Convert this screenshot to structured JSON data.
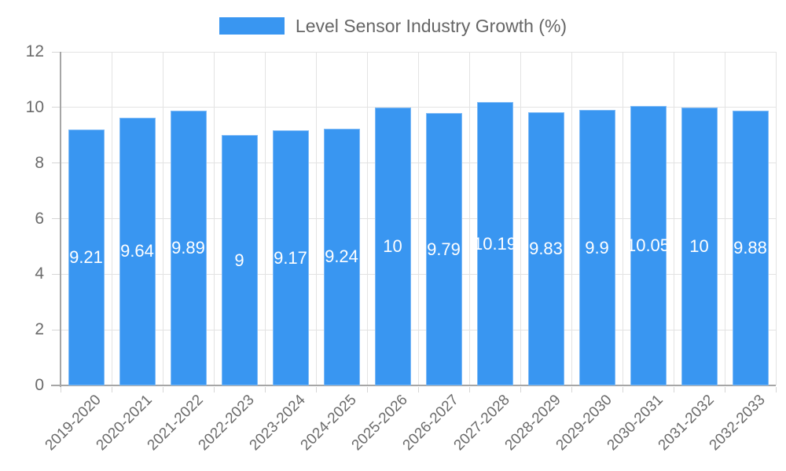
{
  "legend": {
    "label": "Level Sensor Industry Growth (%)"
  },
  "colors": {
    "bar": "#3996f1",
    "grid": "#e3e3e3",
    "axis": "#a6a6a6",
    "tick_mark": "#d6d6d6",
    "tick_text": "#6b6b6b",
    "value_label": "#ffffff",
    "background": "#ffffff"
  },
  "chart_data": {
    "type": "bar",
    "title": "Level Sensor Industry Growth (%)",
    "legend_position": "top",
    "grid": true,
    "xlabel": "",
    "ylabel": "",
    "ylim": [
      0,
      12
    ],
    "yticks": [
      0,
      2,
      4,
      6,
      8,
      10,
      12
    ],
    "categories": [
      "2019-2020",
      "2020-2021",
      "2021-2022",
      "2022-2023",
      "2023-2024",
      "2024-2025",
      "2025-2026",
      "2026-2027",
      "2027-2028",
      "2028-2029",
      "2029-2030",
      "2030-2031",
      "2031-2032",
      "2032-2033"
    ],
    "values": [
      9.21,
      9.64,
      9.89,
      9,
      9.17,
      9.24,
      10,
      9.79,
      10.19,
      9.83,
      9.9,
      10.05,
      10,
      9.88
    ],
    "value_labels": [
      "9.21",
      "9.64",
      "9.89",
      "9",
      "9.17",
      "9.24",
      "10",
      "9.79",
      "10.19",
      "9.83",
      "9.9",
      "10.05",
      "10",
      "9.88"
    ]
  }
}
